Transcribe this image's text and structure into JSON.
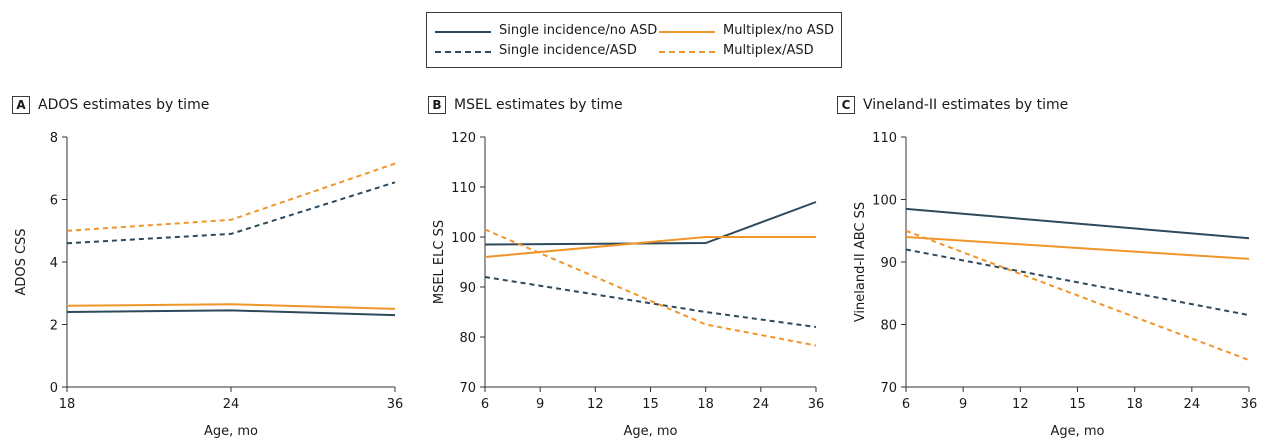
{
  "legend": [
    {
      "label": "Single incidence/no ASD",
      "color": "#2e4a5a",
      "dash": false
    },
    {
      "label": "Multiplex/no ASD",
      "color": "#f0952a",
      "dash": false
    },
    {
      "label": "Single incidence/ASD",
      "color": "#2e4a5a",
      "dash": true
    },
    {
      "label": "Multiplex/ASD",
      "color": "#f0952a",
      "dash": true
    }
  ],
  "chart_data": [
    {
      "type": "line",
      "panel": "A",
      "title": "ADOS estimates by time",
      "xlabel": "Age, mo",
      "ylabel": "ADOS CSS",
      "x_ticks": [
        18,
        24,
        36
      ],
      "y_ticks": [
        0,
        2,
        4,
        6,
        8
      ],
      "ylim": [
        0,
        8
      ],
      "series": [
        {
          "name": "Single incidence/no ASD",
          "x": [
            18,
            24,
            36
          ],
          "values": [
            2.4,
            2.45,
            2.3
          ]
        },
        {
          "name": "Multiplex/no ASD",
          "x": [
            18,
            24,
            36
          ],
          "values": [
            2.6,
            2.65,
            2.5
          ]
        },
        {
          "name": "Single incidence/ASD",
          "x": [
            18,
            24,
            36
          ],
          "values": [
            4.6,
            4.9,
            6.55
          ]
        },
        {
          "name": "Multiplex/ASD",
          "x": [
            18,
            24,
            36
          ],
          "values": [
            5.0,
            5.35,
            7.15
          ]
        }
      ]
    },
    {
      "type": "line",
      "panel": "B",
      "title": "MSEL estimates by time",
      "xlabel": "Age, mo",
      "ylabel": "MSEL ELC SS",
      "x_ticks": [
        6,
        9,
        12,
        15,
        18,
        24,
        36
      ],
      "y_ticks": [
        70,
        80,
        90,
        100,
        110,
        120
      ],
      "ylim": [
        70,
        120
      ],
      "series": [
        {
          "name": "Single incidence/no ASD",
          "x": [
            6,
            18,
            36
          ],
          "values": [
            98.5,
            98.8,
            107
          ]
        },
        {
          "name": "Multiplex/no ASD",
          "x": [
            6,
            18,
            36
          ],
          "values": [
            96,
            100,
            100
          ]
        },
        {
          "name": "Single incidence/ASD",
          "x": [
            6,
            18,
            36
          ],
          "values": [
            92,
            85,
            82
          ]
        },
        {
          "name": "Multiplex/ASD",
          "x": [
            6,
            18,
            36
          ],
          "values": [
            101.5,
            82.5,
            78.3
          ]
        }
      ]
    },
    {
      "type": "line",
      "panel": "C",
      "title": "Vineland-II estimates by time",
      "xlabel": "Age, mo",
      "ylabel": "Vineland-II ABC SS",
      "x_ticks": [
        6,
        9,
        12,
        15,
        18,
        24,
        36
      ],
      "y_ticks": [
        70,
        80,
        90,
        100,
        110
      ],
      "ylim": [
        70,
        110
      ],
      "series": [
        {
          "name": "Single incidence/no ASD",
          "x": [
            6,
            36
          ],
          "values": [
            98.5,
            93.8
          ]
        },
        {
          "name": "Multiplex/no ASD",
          "x": [
            6,
            36
          ],
          "values": [
            94,
            90.5
          ]
        },
        {
          "name": "Single incidence/ASD",
          "x": [
            6,
            36
          ],
          "values": [
            92,
            81.5
          ]
        },
        {
          "name": "Multiplex/ASD",
          "x": [
            6,
            36
          ],
          "values": [
            95,
            74.3
          ]
        }
      ]
    }
  ]
}
